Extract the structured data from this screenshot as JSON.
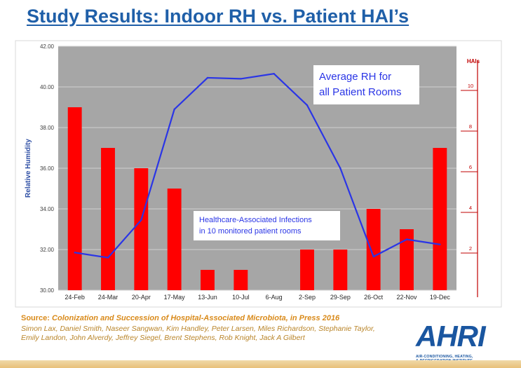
{
  "slide": {
    "title": "Study Results: Indoor RH vs. Patient HAI’s"
  },
  "chart_data": {
    "type": "bar",
    "categories": [
      "24-Feb",
      "24-Mar",
      "20-Apr",
      "17-May",
      "13-Jun",
      "10-Jul",
      "6-Aug",
      "2-Sep",
      "29-Sep",
      "26-Oct",
      "22-Nov",
      "19-Dec"
    ],
    "ylabel": "Relative Humidity",
    "y2label": "HAIs",
    "ylim": [
      30,
      42
    ],
    "y2lim": [
      0,
      12
    ],
    "yticks": [
      "30.00",
      "32.00",
      "34.00",
      "36.00",
      "38.00",
      "40.00",
      "42.00"
    ],
    "y2ticks": [
      "2",
      "4",
      "6",
      "8",
      "10"
    ],
    "grid": true,
    "series": [
      {
        "name": "Healthcare-Associated Infections in 10 monitored patient rooms",
        "chart": "bar",
        "axis": "right",
        "values": [
          9,
          7,
          6,
          5,
          1,
          1,
          0,
          2,
          2,
          4,
          3,
          7
        ]
      },
      {
        "name": "Average RH for all Patient Rooms",
        "chart": "line",
        "axis": "left",
        "values": [
          31.85,
          31.6,
          33.45,
          38.9,
          40.45,
          40.4,
          40.65,
          39.1,
          36.0,
          31.65,
          32.5,
          32.25
        ]
      }
    ],
    "annotations": [
      {
        "text_lines": [
          "Average RH for",
          "all Patient Rooms"
        ],
        "series": "line"
      },
      {
        "text_lines": [
          "Healthcare-Associated Infections",
          "in 10 monitored patient rooms"
        ],
        "series": "bar"
      }
    ],
    "colors": {
      "bar": "#ff0000",
      "line": "#2a35e6",
      "plot_bg": "#a6a6a6",
      "left_axis_label": "#2e4fa5",
      "right_axis": "#c00000"
    }
  },
  "source": {
    "prefix": "Source:",
    "title": "Colonization and Succession of Hospital-Associated Microbiota, in Press 2016",
    "authors": "Simon Lax, Daniel Smith, Naseer Sangwan, Kim Handley, Peter Larsen, Miles Richardson, Stephanie Taylor, Emily Landon, John Alverdy, Jeffrey Siegel, Brent Stephens, Rob Knight, Jack A Gilbert"
  },
  "logo": {
    "word": "AHRI",
    "subtitle_lines": [
      "AIR-CONDITIONING, HEATING,",
      "& REFRIGERATION INSTITUTE"
    ]
  }
}
